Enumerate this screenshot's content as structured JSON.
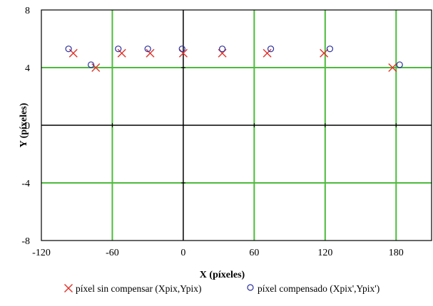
{
  "chart_data": {
    "type": "scatter",
    "title": "",
    "xlabel": "X (píxeles)",
    "ylabel": "Y (píxeles)",
    "xlim": [
      -120,
      210
    ],
    "ylim": [
      -8,
      8
    ],
    "xticks": [
      -120,
      -60,
      0,
      60,
      120,
      180
    ],
    "yticks": [
      -8,
      -4,
      0,
      4,
      8
    ],
    "grid": true,
    "legend_position": "bottom",
    "colors": {
      "grid": "#4dbb3c",
      "axis": "#000000",
      "uncompensated": "#e0332a",
      "compensated": "#2a2f9e"
    },
    "series": [
      {
        "name": "píxel sin compensar (Xpix,Ypix)",
        "marker": "x",
        "points": [
          {
            "x": -93,
            "y": 5.0
          },
          {
            "x": -74,
            "y": 4.0
          },
          {
            "x": -52,
            "y": 5.0
          },
          {
            "x": -28,
            "y": 5.0
          },
          {
            "x": 0,
            "y": 5.0
          },
          {
            "x": 33,
            "y": 5.0
          },
          {
            "x": 71,
            "y": 5.0
          },
          {
            "x": 119,
            "y": 5.0
          },
          {
            "x": 177,
            "y": 4.0
          }
        ]
      },
      {
        "name": "píxel compensado (Xpix',Ypix')",
        "marker": "circle",
        "points": [
          {
            "x": -97,
            "y": 5.3
          },
          {
            "x": -78,
            "y": 4.2
          },
          {
            "x": -55,
            "y": 5.3
          },
          {
            "x": -30,
            "y": 5.3
          },
          {
            "x": -1,
            "y": 5.3
          },
          {
            "x": 33,
            "y": 5.3
          },
          {
            "x": 74,
            "y": 5.3
          },
          {
            "x": 124,
            "y": 5.3
          },
          {
            "x": 183,
            "y": 4.2
          }
        ]
      }
    ]
  }
}
